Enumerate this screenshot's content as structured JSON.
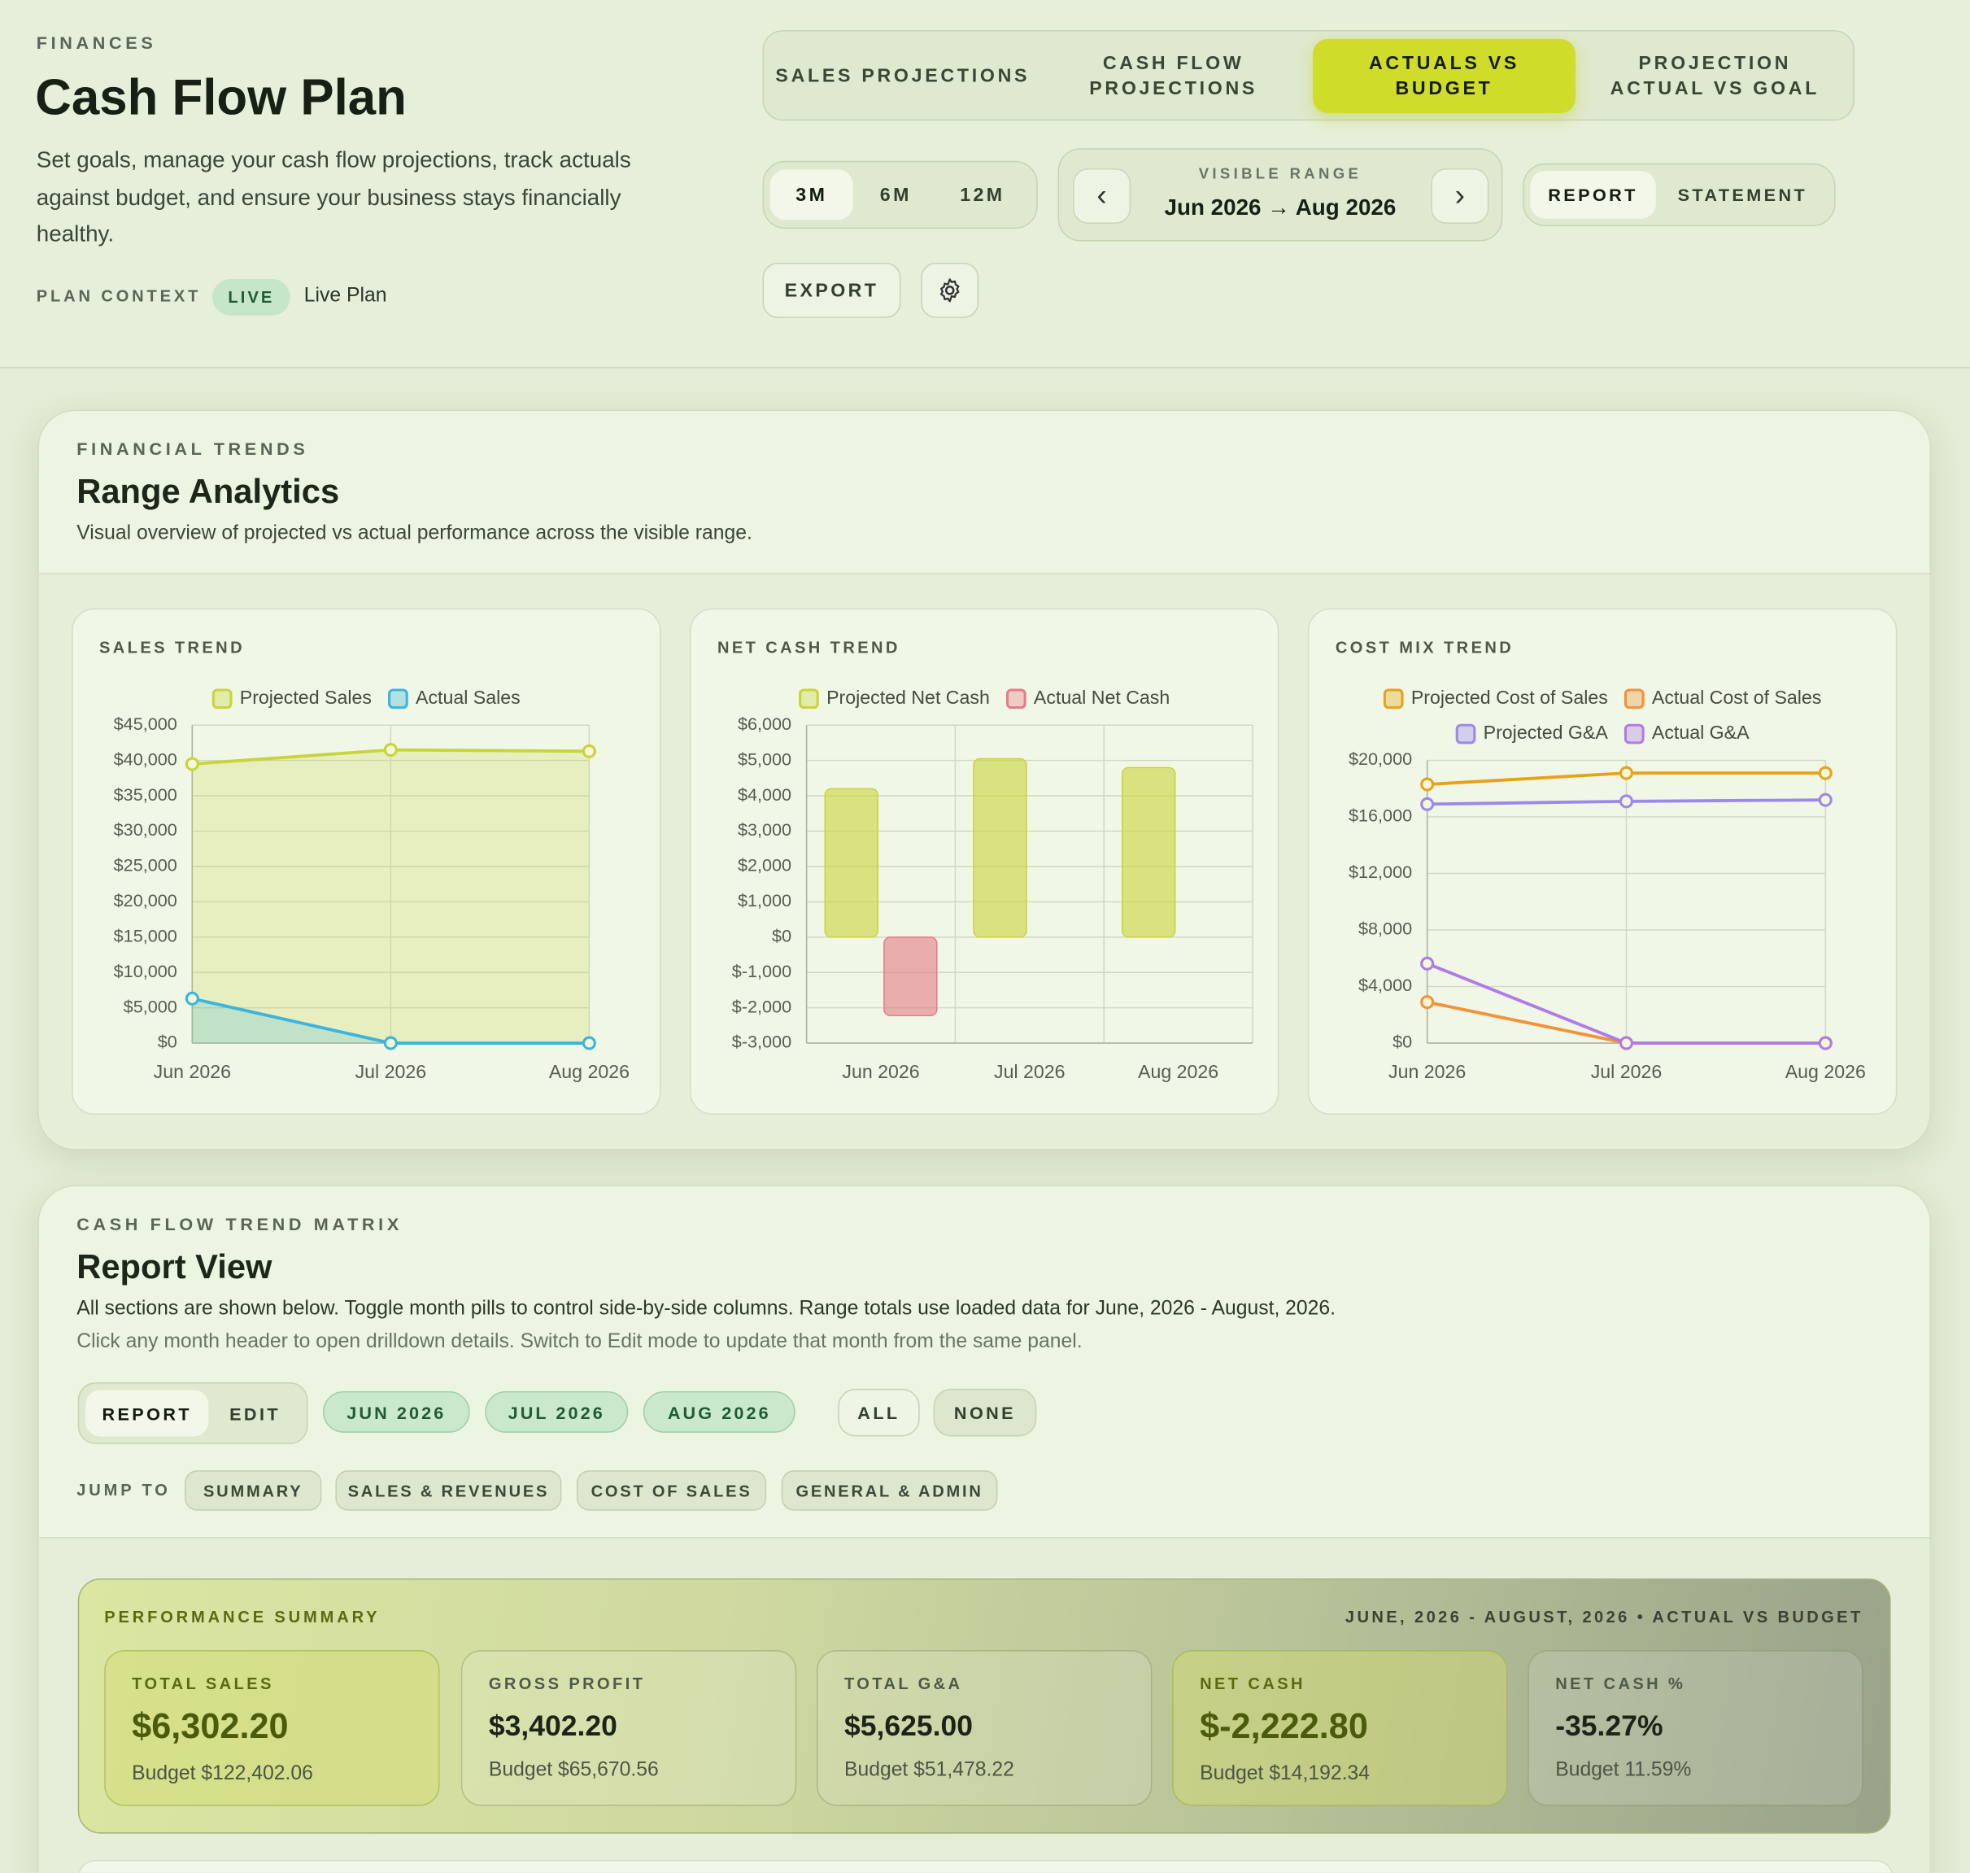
{
  "header": {
    "eyebrow": "FINANCES",
    "title": "Cash Flow Plan",
    "description": "Set goals, manage your cash flow projections, track actuals against budget, and ensure your business stays financially healthy.",
    "context_label": "PLAN CONTEXT",
    "context_badge": "LIVE",
    "context_value": "Live Plan"
  },
  "tabs": [
    {
      "label": "SALES PROJECTIONS",
      "active": false
    },
    {
      "label": "CASH FLOW PROJECTIONS",
      "active": false
    },
    {
      "label": "ACTUALS VS BUDGET",
      "active": true
    },
    {
      "label": "PROJECTION ACTUAL VS GOAL",
      "active": false
    }
  ],
  "range_buttons": [
    {
      "label": "3M",
      "active": true
    },
    {
      "label": "6M",
      "active": false
    },
    {
      "label": "12M",
      "active": false
    }
  ],
  "visible_range": {
    "label": "VISIBLE RANGE",
    "value": "Jun 2026 → Aug 2026",
    "prev": "‹",
    "next": "›"
  },
  "view_toggle": [
    {
      "label": "REPORT",
      "active": true
    },
    {
      "label": "STATEMENT",
      "active": false
    }
  ],
  "export": "EXPORT",
  "trends": {
    "eyebrow": "FINANCIAL TRENDS",
    "title": "Range Analytics",
    "description": "Visual overview of projected vs actual performance across the visible range."
  },
  "chart_data": [
    {
      "type": "area",
      "title": "SALES TREND",
      "categories": [
        "Jun 2026",
        "Jul 2026",
        "Aug 2026"
      ],
      "series": [
        {
          "name": "Projected Sales",
          "color": "#c8d43a",
          "values": [
            39500,
            41500,
            41300
          ]
        },
        {
          "name": "Actual Sales",
          "color": "#3bb5de",
          "values": [
            6302.2,
            0,
            0
          ]
        }
      ],
      "ylim": [
        0,
        45000
      ],
      "yticks": [
        {
          "value": 0,
          "label": "$0"
        },
        {
          "value": 5000,
          "label": "$5,000"
        },
        {
          "value": 10000,
          "label": "$10,000"
        },
        {
          "value": 15000,
          "label": "$15,000"
        },
        {
          "value": 20000,
          "label": "$20,000"
        },
        {
          "value": 25000,
          "label": "$25,000"
        },
        {
          "value": 30000,
          "label": "$30,000"
        },
        {
          "value": 35000,
          "label": "$35,000"
        },
        {
          "value": 40000,
          "label": "$40,000"
        },
        {
          "value": 45000,
          "label": "$45,000"
        }
      ],
      "grid": true
    },
    {
      "type": "bar",
      "title": "NET CASH TREND",
      "categories": [
        "Jun 2026",
        "Jul 2026",
        "Aug 2026"
      ],
      "series": [
        {
          "name": "Projected Net Cash",
          "color": "#c9d43a",
          "values": [
            4200,
            5050,
            4800
          ]
        },
        {
          "name": "Actual Net Cash",
          "color": "#e57c88",
          "values": [
            -2222.8,
            0,
            0
          ]
        }
      ],
      "ylim": [
        -3000,
        6000
      ],
      "yticks": [
        {
          "value": -3000,
          "label": "$-3,000"
        },
        {
          "value": -2000,
          "label": "$-2,000"
        },
        {
          "value": -1000,
          "label": "$-1,000"
        },
        {
          "value": 0,
          "label": "$0"
        },
        {
          "value": 1000,
          "label": "$1,000"
        },
        {
          "value": 2000,
          "label": "$2,000"
        },
        {
          "value": 3000,
          "label": "$3,000"
        },
        {
          "value": 4000,
          "label": "$4,000"
        },
        {
          "value": 5000,
          "label": "$5,000"
        },
        {
          "value": 6000,
          "label": "$6,000"
        }
      ],
      "grid": true
    },
    {
      "type": "line",
      "title": "COST MIX TREND",
      "categories": [
        "Jun 2026",
        "Jul 2026",
        "Aug 2026"
      ],
      "series": [
        {
          "name": "Projected Cost of Sales",
          "color": "#e6a21a",
          "values": [
            18300,
            19100,
            19100
          ]
        },
        {
          "name": "Actual Cost of Sales",
          "color": "#f3923a",
          "values": [
            2900,
            0,
            0
          ]
        },
        {
          "name": "Projected G&A",
          "color": "#9c88ec",
          "values": [
            16900,
            17100,
            17200
          ]
        },
        {
          "name": "Actual G&A",
          "color": "#b07ae8",
          "values": [
            5625,
            0,
            0
          ]
        }
      ],
      "ylim": [
        0,
        20000
      ],
      "yticks": [
        {
          "value": 0,
          "label": "$0"
        },
        {
          "value": 4000,
          "label": "$4,000"
        },
        {
          "value": 8000,
          "label": "$8,000"
        },
        {
          "value": 12000,
          "label": "$12,000"
        },
        {
          "value": 16000,
          "label": "$16,000"
        },
        {
          "value": 20000,
          "label": "$20,000"
        }
      ],
      "grid": true
    }
  ],
  "matrix": {
    "eyebrow": "CASH FLOW TREND MATRIX",
    "title": "Report View",
    "description": "All sections are shown below. Toggle month pills to control side-by-side columns. Range totals use loaded data for June, 2026 - August, 2026.",
    "hint": "Click any month header to open drilldown details. Switch to Edit mode to update that month from the same panel.",
    "modes": [
      {
        "label": "REPORT",
        "active": true
      },
      {
        "label": "EDIT",
        "active": false
      }
    ],
    "months": [
      "JUN 2026",
      "JUL 2026",
      "AUG 2026"
    ],
    "all": "ALL",
    "none": "NONE",
    "jump_label": "JUMP TO",
    "jump": [
      "SUMMARY",
      "SALES & REVENUES",
      "COST OF SALES",
      "GENERAL & ADMIN"
    ]
  },
  "summary": {
    "title": "PERFORMANCE SUMMARY",
    "range": "JUNE, 2026 - AUGUST, 2026 • ACTUAL VS BUDGET",
    "cards": [
      {
        "label": "TOTAL SALES",
        "value": "$6,302.20",
        "budget": "Budget $122,402.06"
      },
      {
        "label": "GROSS PROFIT",
        "value": "$3,402.20",
        "budget": "Budget $65,670.56"
      },
      {
        "label": "TOTAL G&A",
        "value": "$5,625.00",
        "budget": "Budget $51,478.22"
      },
      {
        "label": "NET CASH",
        "value": "$-2,222.80",
        "budget": "Budget $14,192.34"
      },
      {
        "label": "NET CASH %",
        "value": "-35.27%",
        "budget": "Budget 11.59%"
      }
    ]
  }
}
